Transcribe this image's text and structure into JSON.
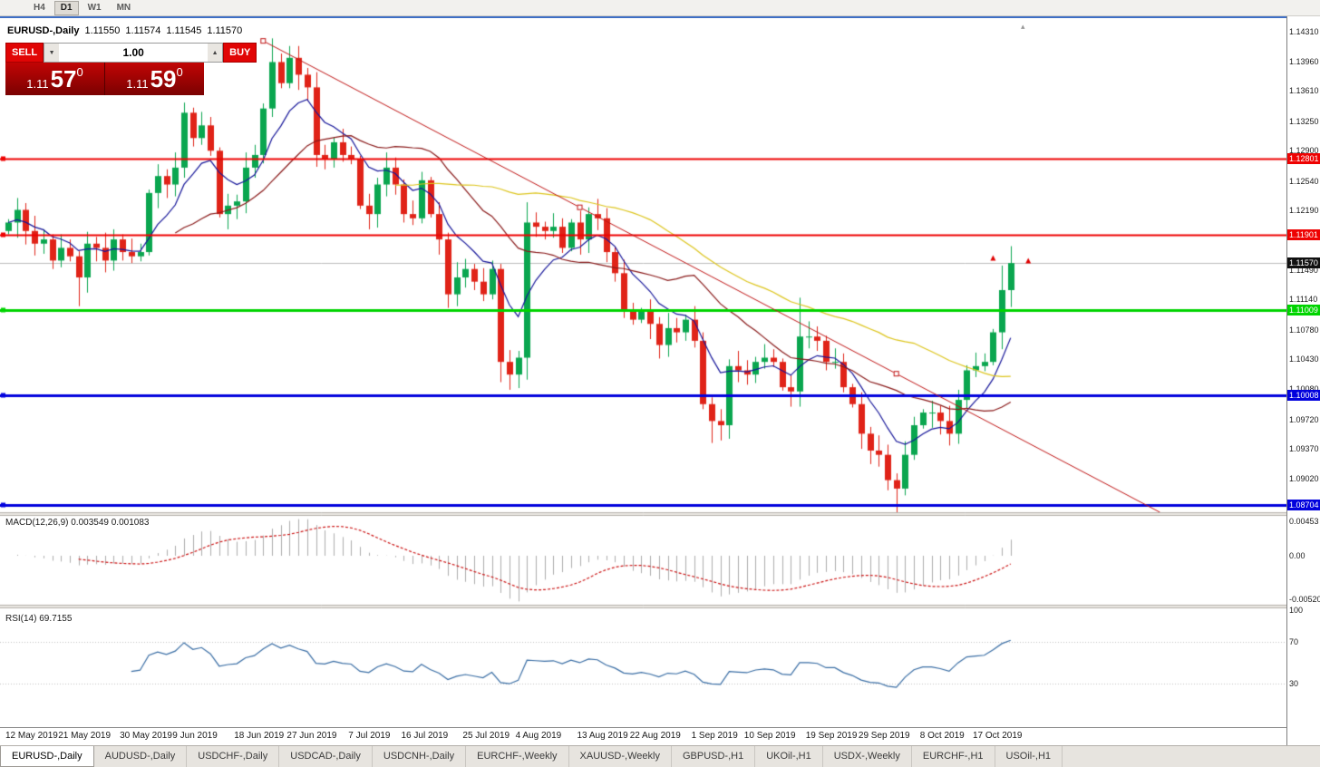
{
  "toolbar": {
    "timeframes": [
      {
        "label": "H4",
        "active": false
      },
      {
        "label": "D1",
        "active": true
      },
      {
        "label": "W1",
        "active": false
      },
      {
        "label": "MN",
        "active": false
      }
    ]
  },
  "chart_header": {
    "symbol": "EURUSD-,Daily",
    "open": "1.11550",
    "high": "1.11574",
    "low": "1.11545",
    "close": "1.11570"
  },
  "trade_panel": {
    "sell_label": "SELL",
    "buy_label": "BUY",
    "volume": "1.00",
    "dec_glyph": "▼",
    "inc_glyph": "▲",
    "sell_price": {
      "prefix": "1.11",
      "big": "57",
      "sup": "0"
    },
    "buy_price": {
      "prefix": "1.11",
      "big": "59",
      "sup": "0"
    }
  },
  "indicator_labels": {
    "macd": "MACD(12,26,9) 0.003549 0.001083",
    "rsi": "RSI(14) 69.7155"
  },
  "misc": {
    "shift_marker": "▴"
  },
  "axes": {
    "price_ticks": [
      1.1431,
      1.1396,
      1.1361,
      1.1325,
      1.129,
      1.1254,
      1.1219,
      1.1149,
      1.1114,
      1.1078,
      1.1043,
      1.1008,
      1.0972,
      1.0937,
      1.0902
    ],
    "macd_ticks": [
      "0.00453",
      "0.00",
      "-0.00520"
    ],
    "rsi_ticks": [
      100,
      70,
      30
    ],
    "date_labels": [
      "12 May 2019",
      "21 May 2019",
      "30 May 2019",
      "9 Jun 2019",
      "18 Jun 2019",
      "27 Jun 2019",
      "7 Jul 2019",
      "16 Jul 2019",
      "25 Jul 2019",
      "4 Aug 2019",
      "13 Aug 2019",
      "22 Aug 2019",
      "1 Sep 2019",
      "10 Sep 2019",
      "19 Sep 2019",
      "29 Sep 2019",
      "8 Oct 2019",
      "17 Oct 2019"
    ],
    "date_indices": [
      0,
      6,
      13,
      19,
      26,
      32,
      39,
      45,
      52,
      58,
      65,
      71,
      78,
      84,
      91,
      97,
      104,
      110
    ]
  },
  "levels": [
    {
      "price": 1.12801,
      "color": "#ee0202",
      "width": 2
    },
    {
      "price": 1.11901,
      "color": "#ee0202",
      "width": 2
    },
    {
      "price": 1.11009,
      "color": "#00d400",
      "width": 3
    },
    {
      "price": 1.10008,
      "color": "#0202dd",
      "width": 3
    },
    {
      "price": 1.08704,
      "color": "#0202dd",
      "width": 3
    }
  ],
  "current_price": 1.1157,
  "trendline": {
    "i1": 29,
    "p1": 1.142,
    "i2": 101,
    "p2": 1.1026,
    "color": "#c01414"
  },
  "markers": [
    {
      "i": 112,
      "p": 1.1163
    },
    {
      "i": 116,
      "p": 1.116
    }
  ],
  "marker_color": "#e00000",
  "tabs": [
    {
      "label": "EURUSD-,Daily",
      "active": true
    },
    {
      "label": "AUDUSD-,Daily",
      "active": false
    },
    {
      "label": "USDCHF-,Daily",
      "active": false
    },
    {
      "label": "USDCAD-,Daily",
      "active": false
    },
    {
      "label": "USDCNH-,Daily",
      "active": false
    },
    {
      "label": "EURCHF-,Weekly",
      "active": false
    },
    {
      "label": "XAUUSD-,Weekly",
      "active": false
    },
    {
      "label": "GBPUSD-,H1",
      "active": false
    },
    {
      "label": "UKOil-,H1",
      "active": false
    },
    {
      "label": "USDX-,Weekly",
      "active": false
    },
    {
      "label": "EURCHF-,H1",
      "active": false
    },
    {
      "label": "USOil-,H1",
      "active": false
    }
  ],
  "chart_data": {
    "type": "candlestick",
    "symbol": "EURUSD-",
    "timeframe": "Daily",
    "price_range": [
      1.0862,
      1.1447
    ],
    "first_open": 1.1195,
    "closes": [
      1.1205,
      1.122,
      1.1195,
      1.118,
      1.1185,
      1.116,
      1.1175,
      1.1165,
      1.114,
      1.118,
      1.1175,
      1.116,
      1.1185,
      1.117,
      1.1165,
      1.117,
      1.124,
      1.126,
      1.125,
      1.127,
      1.1335,
      1.1305,
      1.132,
      1.129,
      1.1215,
      1.1225,
      1.123,
      1.127,
      1.1285,
      1.134,
      1.1395,
      1.137,
      1.14,
      1.138,
      1.1365,
      1.1285,
      1.128,
      1.13,
      1.1285,
      1.128,
      1.1225,
      1.1215,
      1.125,
      1.127,
      1.125,
      1.1215,
      1.121,
      1.1255,
      1.1215,
      1.1185,
      1.112,
      1.114,
      1.115,
      1.1135,
      1.112,
      1.115,
      1.104,
      1.1025,
      1.1045,
      1.1205,
      1.12,
      1.1195,
      1.12,
      1.1175,
      1.1205,
      1.1185,
      1.1215,
      1.121,
      1.117,
      1.1145,
      1.11,
      1.109,
      1.11,
      1.1085,
      1.106,
      1.108,
      1.1075,
      1.109,
      1.1065,
      1.099,
      1.097,
      1.0965,
      1.1035,
      1.103,
      1.1025,
      1.104,
      1.1045,
      1.104,
      1.101,
      1.1005,
      1.107,
      1.107,
      1.1065,
      1.104,
      1.104,
      1.101,
      1.099,
      1.0955,
      1.0935,
      1.093,
      1.09,
      1.089,
      1.093,
      1.0965,
      1.098,
      1.098,
      1.097,
      1.0955,
      1.0995,
      1.103,
      1.1035,
      1.104,
      1.1075,
      1.1125,
      1.1157
    ],
    "wick_overrides": {
      "8": [
        0.0002,
        0.003
      ],
      "30": [
        0.0012,
        0.0002
      ],
      "32": [
        0.001,
        0.0002
      ],
      "56": [
        0.0002,
        0.002
      ],
      "59": [
        0.0006,
        0.0012
      ],
      "80": [
        0.0004,
        0.0022
      ],
      "90": [
        0.0038,
        0.0002
      ],
      "101": [
        0.0002,
        0.0018
      ],
      "113": [
        0.0015,
        0.0002
      ],
      "114": [
        0.0012,
        0.0004
      ]
    },
    "up_color": "#0aa64f",
    "down_color": "#e02318",
    "ma_lines": [
      {
        "period": 8,
        "method": "ema",
        "color": "#16169a"
      },
      {
        "period": 20,
        "method": "sma",
        "color": "#8a1a1a"
      },
      {
        "period": 45,
        "method": "sma",
        "color": "#ddc51c"
      }
    ],
    "macd": {
      "fast": 12,
      "slow": 26,
      "signal": 9,
      "hist_color": "#adadad",
      "signal_color": "#cc1414"
    },
    "rsi": {
      "period": 14,
      "color": "#3a6ea5",
      "levels": [
        70,
        30
      ],
      "range": [
        0,
        100
      ]
    }
  }
}
